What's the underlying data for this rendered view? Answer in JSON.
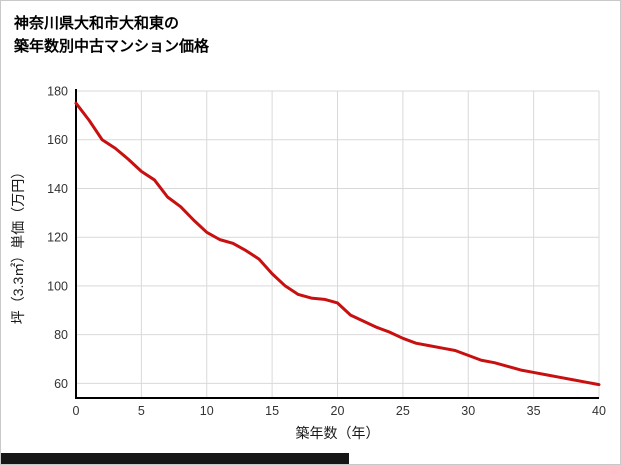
{
  "title": {
    "line1": "神奈川県大和市大和東の",
    "line2": "築年数別中古マンション価格"
  },
  "chart_data": {
    "type": "line",
    "title": "神奈川県大和市大和東の築年数別中古マンション価格",
    "xlabel": "築年数（年）",
    "ylabel": "坪（3.3㎡）単価（万円）",
    "x": [
      0,
      1,
      2,
      3,
      4,
      5,
      6,
      7,
      8,
      9,
      10,
      11,
      12,
      13,
      14,
      15,
      16,
      17,
      18,
      19,
      20,
      21,
      22,
      23,
      24,
      25,
      26,
      27,
      28,
      29,
      30,
      31,
      32,
      33,
      34,
      35,
      36,
      37,
      38,
      39,
      40
    ],
    "values": [
      175,
      168,
      160,
      156.5,
      152,
      147,
      143.5,
      136.5,
      132.5,
      127,
      122,
      119,
      117.5,
      114.5,
      111,
      105,
      100,
      96.5,
      95,
      94.5,
      93,
      88,
      85.5,
      83,
      81,
      78.5,
      76.5,
      75.5,
      74.5,
      73.5,
      71.5,
      69.5,
      68.5,
      67,
      65.5,
      64.5,
      63.5,
      62.5,
      61.5,
      60.5,
      59.5
    ],
    "xlim": [
      0,
      40
    ],
    "ylim": [
      54,
      180
    ],
    "xticks": [
      0,
      5,
      10,
      15,
      20,
      25,
      30,
      35,
      40
    ],
    "yticks": [
      60,
      80,
      100,
      120,
      140,
      160,
      180
    ],
    "grid": true,
    "legend": "none",
    "line_color": "#c81010",
    "axis_color": "#000000",
    "grid_color": "#d9d9d9",
    "tick_label_color": "#333333",
    "axis_label_color": "#1a1a1a"
  }
}
